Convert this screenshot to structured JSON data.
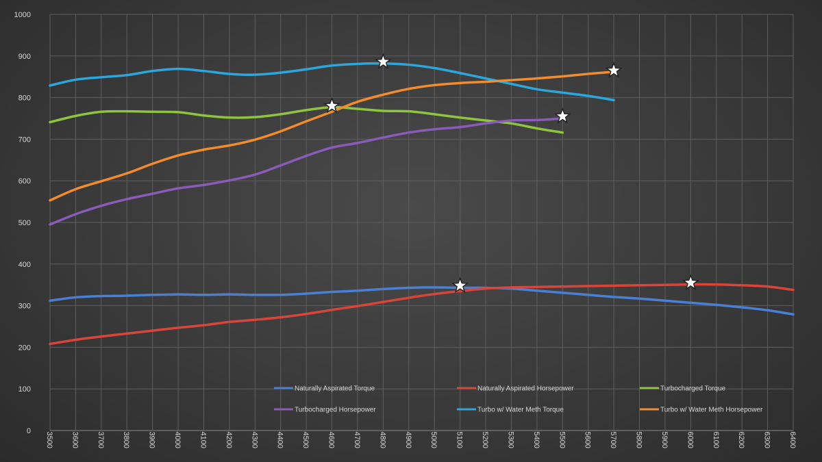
{
  "chart_data": {
    "type": "line",
    "title": "",
    "xlabel": "",
    "ylabel": "",
    "ylim": [
      0,
      1000
    ],
    "yticks": [
      0,
      100,
      200,
      300,
      400,
      500,
      600,
      700,
      800,
      900,
      1000
    ],
    "xlim": [
      3500,
      6400
    ],
    "x_step": 100,
    "x_ticks": [
      "3500",
      "3600",
      "3700",
      "3800",
      "3900",
      "4000",
      "4100",
      "4200",
      "4300",
      "4400",
      "4500",
      "4600",
      "4700",
      "4800",
      "4900",
      "5000",
      "5100",
      "5200",
      "5300",
      "5400",
      "5500",
      "5600",
      "5700",
      "5800",
      "5900",
      "6000",
      "6100",
      "6200",
      "6300",
      "6400"
    ],
    "grid": true,
    "legend_position": "lower-center",
    "series": [
      {
        "name": "Naturally Aspirated Torque",
        "color": "#4a7fd6",
        "x": [
          3500,
          3600,
          3700,
          3800,
          3900,
          4000,
          4100,
          4200,
          4300,
          4400,
          4500,
          4600,
          4700,
          4800,
          4900,
          5000,
          5100,
          5200,
          5300,
          5400,
          5500,
          5600,
          5700,
          5800,
          5900,
          6000,
          6100,
          6200,
          6300,
          6400
        ],
        "values": [
          312,
          320,
          323,
          324,
          326,
          327,
          326,
          327,
          326,
          326,
          329,
          333,
          336,
          340,
          343,
          344,
          343,
          343,
          341,
          336,
          331,
          326,
          321,
          317,
          312,
          307,
          302,
          296,
          289,
          279
        ],
        "peak": {
          "x": 5100,
          "y": 348
        }
      },
      {
        "name": "Naturally Aspirated Horsepower",
        "color": "#d9453a",
        "x": [
          3500,
          3600,
          3700,
          3800,
          3900,
          4000,
          4100,
          4200,
          4300,
          4400,
          4500,
          4600,
          4700,
          4800,
          4900,
          5000,
          5100,
          5200,
          5300,
          5400,
          5500,
          5600,
          5700,
          5800,
          5900,
          6000,
          6100,
          6200,
          6300,
          6400
        ],
        "values": [
          208,
          218,
          226,
          233,
          240,
          247,
          253,
          261,
          266,
          272,
          280,
          290,
          299,
          309,
          319,
          328,
          335,
          341,
          344,
          345,
          346,
          347,
          348,
          349,
          350,
          351,
          351,
          349,
          346,
          338
        ],
        "peak": {
          "x": 6000,
          "y": 355
        }
      },
      {
        "name": "Turbocharged Torque",
        "color": "#8fc440",
        "x": [
          3500,
          3600,
          3700,
          3800,
          3900,
          4000,
          4100,
          4200,
          4300,
          4400,
          4500,
          4600,
          4700,
          4800,
          4900,
          5000,
          5100,
          5200,
          5300,
          5400,
          5500
        ],
        "values": [
          741,
          756,
          766,
          767,
          766,
          765,
          757,
          752,
          753,
          760,
          770,
          777,
          773,
          768,
          767,
          760,
          752,
          745,
          738,
          726,
          716
        ],
        "peak": {
          "x": 4600,
          "y": 780
        }
      },
      {
        "name": "Turbocharged Horsepower",
        "color": "#8a5bb8",
        "x": [
          3500,
          3600,
          3700,
          3800,
          3900,
          4000,
          4100,
          4200,
          4300,
          4400,
          4500,
          4600,
          4700,
          4800,
          4900,
          5000,
          5100,
          5200,
          5300,
          5400,
          5500
        ],
        "values": [
          495,
          520,
          540,
          556,
          569,
          582,
          590,
          601,
          615,
          637,
          660,
          680,
          691,
          704,
          716,
          724,
          729,
          738,
          745,
          746,
          750
        ],
        "peak": {
          "x": 5500,
          "y": 755
        }
      },
      {
        "name": "Turbo w/ Water Meth Torque",
        "color": "#2ba7de",
        "x": [
          3500,
          3600,
          3700,
          3800,
          3900,
          4000,
          4100,
          4200,
          4300,
          4400,
          4500,
          4600,
          4700,
          4800,
          4900,
          5000,
          5100,
          5200,
          5300,
          5400,
          5500,
          5600,
          5700
        ],
        "values": [
          829,
          843,
          849,
          854,
          864,
          869,
          864,
          857,
          855,
          860,
          868,
          877,
          881,
          882,
          879,
          871,
          859,
          846,
          833,
          820,
          812,
          804,
          794
        ],
        "peak": {
          "x": 4800,
          "y": 886
        }
      },
      {
        "name": "Turbo w/ Water Meth Horsepower",
        "color": "#f28c2c",
        "x": [
          3500,
          3600,
          3700,
          3800,
          3900,
          4000,
          4100,
          4200,
          4300,
          4400,
          4500,
          4600,
          4700,
          4800,
          4900,
          5000,
          5100,
          5200,
          5300,
          5400,
          5500,
          5600,
          5700
        ],
        "values": [
          553,
          580,
          599,
          618,
          641,
          661,
          675,
          685,
          699,
          719,
          743,
          766,
          790,
          807,
          821,
          830,
          835,
          838,
          842,
          846,
          851,
          857,
          862
        ],
        "peak": {
          "x": 5700,
          "y": 865
        }
      }
    ]
  }
}
